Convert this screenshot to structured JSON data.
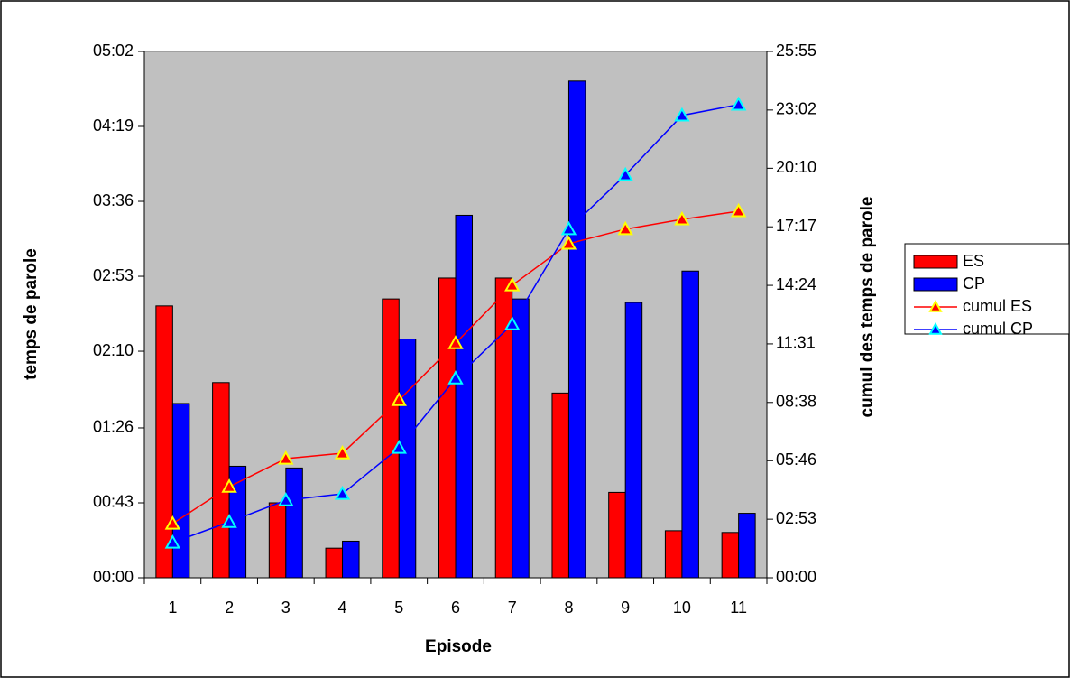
{
  "chart_data": {
    "type": "bar-line",
    "x_label": "Episode",
    "y_label": "temps de parole",
    "y2_label": "cumul des temps de parole",
    "categories": [
      "1",
      "2",
      "3",
      "4",
      "5",
      "6",
      "7",
      "8",
      "9",
      "10",
      "11"
    ],
    "ylim": [
      0,
      302
    ],
    "yticks": [
      {
        "value": 0,
        "label": "00:00"
      },
      {
        "value": 43,
        "label": "00:43"
      },
      {
        "value": 86,
        "label": "01:26"
      },
      {
        "value": 130,
        "label": "02:10"
      },
      {
        "value": 173,
        "label": "02:53"
      },
      {
        "value": 216,
        "label": "03:36"
      },
      {
        "value": 259,
        "label": "04:19"
      },
      {
        "value": 302,
        "label": "05:02"
      }
    ],
    "y2lim": [
      0,
      1555
    ],
    "y2ticks": [
      {
        "value": 0,
        "label": "00:00"
      },
      {
        "value": 173,
        "label": "02:53"
      },
      {
        "value": 346,
        "label": "05:46"
      },
      {
        "value": 518,
        "label": "08:38"
      },
      {
        "value": 691,
        "label": "11:31"
      },
      {
        "value": 864,
        "label": "14:24"
      },
      {
        "value": 1037,
        "label": "17:17"
      },
      {
        "value": 1210,
        "label": "20:10"
      },
      {
        "value": 1382,
        "label": "23:02"
      },
      {
        "value": 1555,
        "label": "25:55"
      }
    ],
    "series": [
      {
        "name": "ES",
        "kind": "bar",
        "color": "#ff0000",
        "values": [
          156,
          112,
          43,
          17,
          160,
          172,
          172,
          106,
          49,
          27,
          26
        ]
      },
      {
        "name": "CP",
        "kind": "bar",
        "color": "#0000ff",
        "values": [
          100,
          64,
          63,
          21,
          137,
          208,
          160,
          285,
          158,
          176,
          37
        ]
      },
      {
        "name": "cumul ES",
        "kind": "line",
        "axis": "y2",
        "color": "#ff0000",
        "marker_color": "#ffff00",
        "values": [
          160,
          269,
          352,
          368,
          525,
          693,
          864,
          987,
          1030,
          1059,
          1083
        ]
      },
      {
        "name": "cumul CP",
        "kind": "line",
        "axis": "y2",
        "color": "#0000ff",
        "marker_color": "#00ffff",
        "values": [
          104,
          165,
          229,
          248,
          384,
          589,
          749,
          1030,
          1190,
          1366,
          1398
        ]
      }
    ],
    "plot_background": "#c0c0c0"
  }
}
